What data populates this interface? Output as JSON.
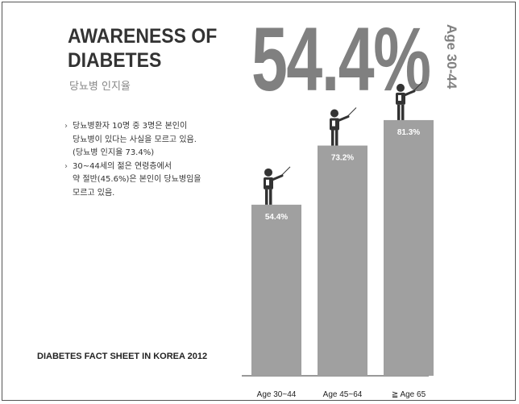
{
  "title_line1": "AWARENESS OF",
  "title_line2": "DIABETES",
  "subtitle": "당뇨병 인지율",
  "headline_value": "54.4%",
  "headline_age": "Age 30-44",
  "bullets": [
    {
      "lines": [
        "당뇨병환자 10명 중 3명은 본인이",
        "당뇨병이 있다는 사실을 모르고 있음.",
        "(당뇨병 인지율 73.4%)"
      ]
    },
    {
      "lines": [
        "30~44세의 젊은 연령층에서",
        "약 절반(45.6%)은  본인이 당뇨병임을",
        "모르고 있음."
      ]
    }
  ],
  "footer": "DIABETES FACT SHEET IN KOREA 2012",
  "colors": {
    "bar": "#a0a0a0",
    "headline": "#808080",
    "figure": "#333333"
  },
  "icons": [
    "presenter-figure-icon"
  ],
  "chart_data": {
    "type": "bar",
    "categories": [
      "Age 30~44",
      "Age 45~64",
      "≧ Age 65"
    ],
    "values": [
      54.4,
      73.2,
      81.3
    ],
    "labels": [
      "54.4%",
      "73.2%",
      "81.3%"
    ],
    "title": "",
    "xlabel": "",
    "ylabel": "",
    "ylim": [
      0,
      100
    ],
    "grid": false,
    "legend": "none"
  }
}
